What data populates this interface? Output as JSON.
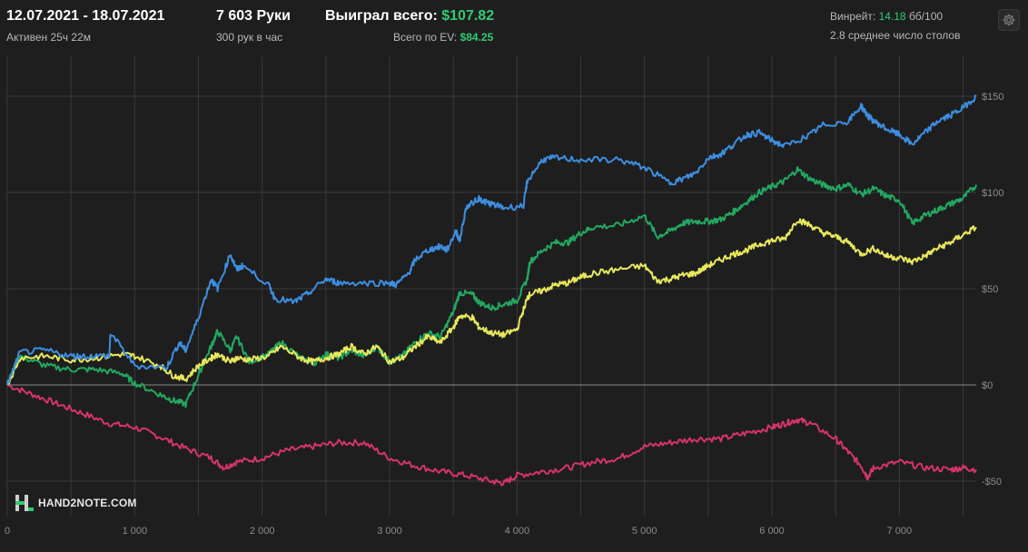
{
  "header": {
    "date_range": "12.07.2021 - 18.07.2021",
    "active_label": "Активен 25ч 22м",
    "hands_label": "7 603 Руки",
    "hands_per_hour_label": "300 рук в час",
    "won_total_label": "Выиграл всего:",
    "won_total_value": "$107.82",
    "ev_total_label": "Всего по EV:",
    "ev_total_value": "$84.25",
    "winrate_label": "Винрейт:",
    "winrate_value": "14.18",
    "winrate_unit": "бб/100",
    "tables_label": "2.8 среднее число столов"
  },
  "logo": {
    "text": "HAND2NOTE.COM",
    "icon": "hand2note-logo-icon"
  },
  "settings": {
    "icon": "gear-icon"
  },
  "colors": {
    "background": "#1e1e1e",
    "grid": "#3a3a3a",
    "zero_line": "#8a8a8a",
    "axis_text": "#8c8c8c",
    "positive": "#2ecc71"
  },
  "chart_data": {
    "type": "line",
    "xlabel": "",
    "ylabel": "",
    "xlim": [
      0,
      7603
    ],
    "ylim": [
      -60,
      170
    ],
    "x_ticks": [
      0,
      1000,
      2000,
      3000,
      4000,
      5000,
      6000,
      7000
    ],
    "x_tick_labels": [
      "0",
      "1 000",
      "2 000",
      "3 000",
      "4 000",
      "5 000",
      "6 000",
      "7 000"
    ],
    "y_ticks": [
      150,
      100,
      50,
      0,
      -50
    ],
    "y_tick_labels": [
      "$150",
      "$100",
      "$50",
      "$0",
      "-$50"
    ],
    "grid": true,
    "series": [
      {
        "color": "#3d8ee0",
        "x": [
          0,
          100,
          300,
          500,
          600,
          800,
          810,
          1000,
          1250,
          1350,
          1400,
          1500,
          1600,
          1650,
          1750,
          1800,
          1850,
          2050,
          2100,
          2250,
          2350,
          2500,
          2600,
          2800,
          3000,
          3050,
          3150,
          3200,
          3300,
          3400,
          3450,
          3520,
          3550,
          3600,
          3700,
          3750,
          3800,
          3900,
          4050,
          4080,
          4200,
          4300,
          4500,
          4800,
          5000,
          5200,
          5300,
          5400,
          5500,
          5600,
          5700,
          5800,
          5900,
          6000,
          6100,
          6300,
          6400,
          6600,
          6700,
          6750,
          6800,
          6900,
          7000,
          7100,
          7200,
          7300,
          7400,
          7500,
          7603
        ],
        "y": [
          0,
          17,
          18,
          15,
          15,
          15,
          27,
          10,
          9,
          22,
          18,
          35,
          55,
          50,
          68,
          60,
          62,
          52,
          45,
          43,
          47,
          55,
          53,
          53,
          53,
          52,
          58,
          65,
          70,
          72,
          70,
          80,
          75,
          92,
          97,
          95,
          94,
          92,
          93,
          106,
          117,
          118,
          117,
          117,
          113,
          105,
          107,
          110,
          118,
          120,
          125,
          130,
          131,
          127,
          124,
          130,
          135,
          137,
          145,
          140,
          137,
          133,
          130,
          125,
          131,
          137,
          140,
          144,
          150
        ]
      },
      {
        "color": "#22a861",
        "x": [
          0,
          100,
          300,
          500,
          700,
          900,
          1000,
          1200,
          1300,
          1400,
          1500,
          1600,
          1650,
          1750,
          1800,
          1900,
          2050,
          2150,
          2300,
          2400,
          2500,
          2600,
          2700,
          2800,
          2900,
          3000,
          3100,
          3200,
          3300,
          3400,
          3500,
          3550,
          3650,
          3700,
          3800,
          3900,
          4000,
          4080,
          4100,
          4200,
          4300,
          4400,
          4500,
          4600,
          4800,
          5000,
          5100,
          5200,
          5300,
          5400,
          5500,
          5600,
          5700,
          5800,
          5900,
          6000,
          6100,
          6200,
          6300,
          6400,
          6500,
          6600,
          6700,
          6800,
          6900,
          7000,
          7100,
          7200,
          7300,
          7400,
          7500,
          7603
        ],
        "y": [
          0,
          15,
          10,
          8,
          8,
          6,
          1,
          -5,
          -8,
          -10,
          5,
          20,
          28,
          18,
          25,
          12,
          16,
          22,
          14,
          11,
          16,
          14,
          18,
          15,
          20,
          12,
          15,
          22,
          27,
          25,
          38,
          48,
          47,
          43,
          40,
          42,
          44,
          55,
          64,
          70,
          74,
          74,
          79,
          82,
          83,
          88,
          77,
          80,
          84,
          85,
          85,
          86,
          90,
          95,
          100,
          103,
          106,
          112,
          107,
          104,
          102,
          104,
          99,
          102,
          98,
          96,
          84,
          88,
          91,
          94,
          97,
          104
        ]
      },
      {
        "color": "#e8e85a",
        "x": [
          0,
          100,
          300,
          500,
          700,
          900,
          1000,
          1200,
          1300,
          1400,
          1500,
          1600,
          1650,
          1750,
          1800,
          1900,
          2050,
          2150,
          2300,
          2400,
          2500,
          2600,
          2700,
          2800,
          2900,
          3000,
          3100,
          3200,
          3300,
          3400,
          3500,
          3550,
          3650,
          3700,
          3800,
          3900,
          4000,
          4080,
          4100,
          4200,
          4300,
          4400,
          4500,
          4600,
          4800,
          5000,
          5100,
          5200,
          5300,
          5400,
          5500,
          5600,
          5700,
          5800,
          5900,
          6000,
          6100,
          6200,
          6300,
          6400,
          6500,
          6600,
          6700,
          6800,
          6900,
          7000,
          7100,
          7200,
          7300,
          7400,
          7500,
          7603
        ],
        "y": [
          0,
          14,
          15,
          13,
          14,
          16,
          15,
          10,
          5,
          3,
          10,
          14,
          16,
          12,
          14,
          13,
          15,
          20,
          14,
          12,
          14,
          16,
          20,
          16,
          20,
          12,
          14,
          20,
          25,
          22,
          30,
          36,
          35,
          30,
          27,
          26,
          29,
          45,
          47,
          49,
          52,
          53,
          56,
          58,
          60,
          62,
          54,
          55,
          57,
          58,
          62,
          65,
          68,
          70,
          73,
          75,
          76,
          86,
          83,
          79,
          77,
          74,
          68,
          71,
          67,
          66,
          64,
          67,
          71,
          74,
          78,
          82
        ]
      },
      {
        "color": "#d6336c",
        "x": [
          0,
          200,
          400,
          600,
          800,
          1000,
          1200,
          1400,
          1600,
          1700,
          1800,
          2000,
          2200,
          2400,
          2600,
          2800,
          3000,
          3200,
          3400,
          3600,
          3800,
          3900,
          4000,
          4200,
          4400,
          4600,
          4800,
          5000,
          5200,
          5400,
          5600,
          5800,
          6000,
          6100,
          6200,
          6300,
          6500,
          6600,
          6700,
          6750,
          6800,
          7000,
          7200,
          7400,
          7500,
          7603
        ],
        "y": [
          0,
          -5,
          -10,
          -15,
          -20,
          -22,
          -27,
          -33,
          -38,
          -43,
          -40,
          -38,
          -34,
          -32,
          -30,
          -30,
          -38,
          -42,
          -45,
          -47,
          -50,
          -51,
          -47,
          -45,
          -43,
          -40,
          -38,
          -32,
          -30,
          -28,
          -28,
          -25,
          -22,
          -20,
          -18,
          -20,
          -28,
          -35,
          -42,
          -48,
          -43,
          -40,
          -43,
          -44,
          -43,
          -44
        ]
      }
    ]
  }
}
